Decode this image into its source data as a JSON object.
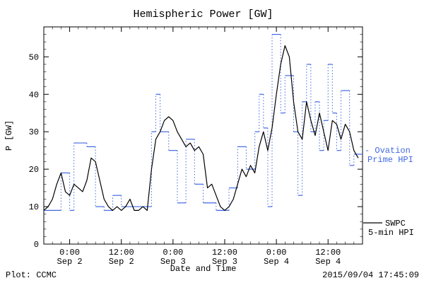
{
  "chart_data": {
    "type": "line",
    "title": "Hemispheric Power [GW]",
    "xlabel": "Date and Time",
    "ylabel": "P [GW]",
    "ylim": [
      0,
      58
    ],
    "xlim": [
      0,
      74
    ],
    "x_unit": "hours since 2015-09-01 18:00",
    "grid": false,
    "yticks": [
      0,
      10,
      20,
      30,
      40,
      50
    ],
    "xticks": [
      {
        "t": 6,
        "time": "0:00",
        "date": "Sep 2"
      },
      {
        "t": 18,
        "time": "12:00",
        "date": "Sep 2"
      },
      {
        "t": 30,
        "time": "0:00",
        "date": "Sep 3"
      },
      {
        "t": 42,
        "time": "12:00",
        "date": "Sep 3"
      },
      {
        "t": 54,
        "time": "0:00",
        "date": "Sep 4"
      },
      {
        "t": 66,
        "time": "12:00",
        "date": "Sep 4"
      }
    ],
    "series": [
      {
        "name": "SWPC 5-min HPI",
        "color": "#000000",
        "style": "solid-line",
        "x_start": 0,
        "x_step": 1,
        "values": [
          9,
          10,
          12,
          16,
          19,
          14,
          13,
          16,
          15,
          14,
          17,
          23,
          22,
          17,
          12,
          10,
          9,
          10,
          9,
          10,
          12,
          9,
          9,
          10,
          9,
          20,
          28,
          30,
          33,
          34,
          33,
          30,
          28,
          26,
          27,
          25,
          26,
          24,
          15,
          16,
          13,
          10,
          9,
          10,
          12,
          16,
          20,
          18,
          21,
          19,
          26,
          30,
          25,
          31,
          40,
          48,
          53,
          50,
          38,
          30,
          28,
          38,
          33,
          29,
          35,
          30,
          25,
          33,
          32,
          28,
          32,
          30,
          25,
          23
        ]
      },
      {
        "name": "Ovation Prime HPI",
        "color": "#4169e1",
        "style": "step-horizontal-solid-vertical-dotted",
        "breakpoints": [
          [
            0,
            9
          ],
          [
            4,
            19
          ],
          [
            6,
            9
          ],
          [
            7,
            27
          ],
          [
            10,
            26
          ],
          [
            12,
            10
          ],
          [
            14,
            9
          ],
          [
            16,
            13
          ],
          [
            18,
            10
          ],
          [
            25,
            30
          ],
          [
            26,
            40
          ],
          [
            27,
            30
          ],
          [
            29,
            25
          ],
          [
            31,
            11
          ],
          [
            33,
            28
          ],
          [
            35,
            16
          ],
          [
            37,
            11
          ],
          [
            40,
            9
          ],
          [
            43,
            15
          ],
          [
            45,
            26
          ],
          [
            47,
            20
          ],
          [
            49,
            30
          ],
          [
            50,
            40
          ],
          [
            51,
            31
          ],
          [
            52,
            10
          ],
          [
            53,
            56
          ],
          [
            55,
            35
          ],
          [
            56,
            45
          ],
          [
            58,
            30
          ],
          [
            59,
            13
          ],
          [
            60,
            38
          ],
          [
            61,
            48
          ],
          [
            62,
            30
          ],
          [
            63,
            38
          ],
          [
            64,
            25
          ],
          [
            65,
            33
          ],
          [
            66,
            48
          ],
          [
            67,
            35
          ],
          [
            68,
            25
          ],
          [
            69,
            41
          ],
          [
            71,
            21
          ],
          [
            72,
            24
          ]
        ]
      }
    ],
    "legend": {
      "position": "right-of-plot",
      "ovation_line1": "- Ovation",
      "ovation_line2": "Prime HPI",
      "swpc_line1": "SWPC",
      "swpc_line2": "5-min HPI"
    },
    "footer": {
      "left": "Plot: CCMC",
      "right": "2015/09/04 17:45:09"
    }
  }
}
